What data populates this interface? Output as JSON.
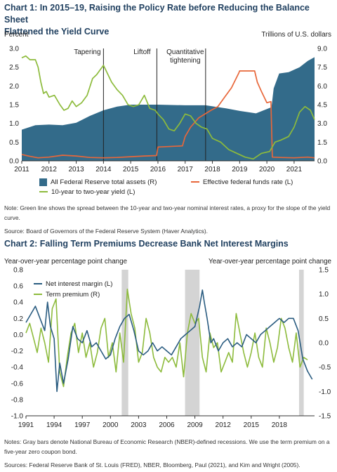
{
  "chart1": {
    "title_line1": "Chart 1: In 2015–19, Raising the Policy Rate before Reducing the Balance Sheet",
    "title_line2": "Flattened the Yield Curve",
    "left_axis_title": "Percent",
    "right_axis_title": "Trillions of U.S. dollars",
    "annotations": [
      "Tapering",
      "Liftoff",
      "Quantitative",
      "tightening"
    ],
    "note": "Note: Green line shows the spread between the 10-year and two-year nominal interest rates, a proxy for the slope of the yield curve.",
    "source": "Source: Board of Governors of the Federal Reserve System (Haver Analytics).",
    "colors": {
      "assets": "#336b8a",
      "ffr": "#e8673a",
      "spread": "#8dbb3c"
    }
  },
  "chart2": {
    "title": "Chart 2: Falling Term Premiums Decrease Bank Net Interest Margins",
    "left_axis_title": "Year-over-year percentage point change",
    "right_axis_title": "Year-over-year percentage point change",
    "note": "Notes: Gray bars denote National Bureau of Economic Research (NBER)-defined recessions. We use the term premium on a five-year zero coupon bond.",
    "source": "Sources: Federal Reserve Bank of St. Louis (FRED), NBER, Bloomberg, Paul (2021), and Kim and Wright (2005).",
    "colors": {
      "nim": "#2a5c80",
      "tp": "#8dbb3c",
      "recession": "#d4d4d4"
    }
  },
  "chart_data": [
    {
      "type": "line",
      "title": "Chart 1: In 2015–19, Raising the Policy Rate before Reducing the Balance Sheet Flattened the Yield Curve",
      "x_ticks": [
        "2011",
        "2012",
        "2013",
        "2014",
        "2015",
        "2016",
        "2017",
        "2018",
        "2019",
        "2020",
        "2021"
      ],
      "xlim": [
        2011,
        2021.75
      ],
      "ylim_left": [
        0,
        3.0
      ],
      "yticks_left": [
        "0.0",
        "0.5",
        "1.0",
        "1.5",
        "2.0",
        "2.5",
        "3.0"
      ],
      "ylim_right": [
        0,
        9.0
      ],
      "yticks_right": [
        "0.0",
        "1.5",
        "3.0",
        "4.5",
        "6.0",
        "7.5",
        "9.0"
      ],
      "event_lines": [
        {
          "label": "Tapering",
          "x": 2014.0
        },
        {
          "label": "Liftoff",
          "x": 2015.96
        },
        {
          "label": "Quantitative tightening",
          "x": 2017.75
        }
      ],
      "series": [
        {
          "name": "All Federal Reserve total assets (R)",
          "axis": "right",
          "kind": "area",
          "x": [
            2011.0,
            2011.5,
            2012.0,
            2012.5,
            2013.0,
            2013.5,
            2014.0,
            2014.5,
            2015.0,
            2016.0,
            2017.0,
            2017.75,
            2018.5,
            2019.0,
            2019.6,
            2020.0,
            2020.17,
            2020.25,
            2020.45,
            2020.8,
            2021.2,
            2021.5,
            2021.75
          ],
          "y": [
            2.5,
            2.85,
            2.9,
            2.85,
            3.05,
            3.6,
            4.05,
            4.35,
            4.5,
            4.5,
            4.45,
            4.45,
            4.2,
            4.0,
            3.8,
            4.15,
            4.3,
            5.8,
            7.0,
            7.1,
            7.5,
            8.0,
            8.3
          ]
        },
        {
          "name": "Effective federal funds rate (L)",
          "axis": "left",
          "kind": "line",
          "x": [
            2011.0,
            2011.3,
            2011.6,
            2012.0,
            2012.5,
            2013.0,
            2013.5,
            2014.0,
            2014.5,
            2015.0,
            2015.5,
            2015.95,
            2016.0,
            2016.9,
            2017.0,
            2017.2,
            2017.5,
            2017.95,
            2018.2,
            2018.45,
            2018.7,
            2018.97,
            2019.0,
            2019.55,
            2019.65,
            2019.8,
            2020.0,
            2020.15,
            2020.2,
            2020.5,
            2021.0,
            2021.5,
            2021.75
          ],
          "y": [
            0.17,
            0.12,
            0.08,
            0.1,
            0.15,
            0.13,
            0.09,
            0.08,
            0.09,
            0.11,
            0.13,
            0.14,
            0.37,
            0.4,
            0.65,
            0.9,
            1.15,
            1.35,
            1.45,
            1.7,
            1.95,
            2.35,
            2.4,
            2.4,
            2.1,
            1.85,
            1.55,
            1.58,
            0.1,
            0.09,
            0.08,
            0.1,
            0.08
          ]
        },
        {
          "name": "10-year to two-year yield (L)",
          "axis": "left",
          "kind": "line",
          "x": [
            2011.0,
            2011.15,
            2011.3,
            2011.5,
            2011.6,
            2011.7,
            2011.8,
            2011.9,
            2012.0,
            2012.2,
            2012.4,
            2012.55,
            2012.7,
            2012.85,
            2013.0,
            2013.2,
            2013.4,
            2013.6,
            2013.75,
            2013.9,
            2014.0,
            2014.1,
            2014.3,
            2014.5,
            2014.7,
            2014.9,
            2015.1,
            2015.3,
            2015.5,
            2015.7,
            2015.9,
            2016.0,
            2016.2,
            2016.4,
            2016.6,
            2016.8,
            2017.0,
            2017.2,
            2017.4,
            2017.6,
            2017.8,
            2018.0,
            2018.3,
            2018.6,
            2018.9,
            2019.2,
            2019.5,
            2019.8,
            2020.1,
            2020.3,
            2020.5,
            2020.8,
            2021.0,
            2021.2,
            2021.4,
            2021.6,
            2021.75
          ],
          "y": [
            2.75,
            2.8,
            2.7,
            2.7,
            2.5,
            2.1,
            1.8,
            1.85,
            1.7,
            1.75,
            1.5,
            1.35,
            1.4,
            1.6,
            1.45,
            1.55,
            1.75,
            2.2,
            2.3,
            2.45,
            2.55,
            2.4,
            2.1,
            1.9,
            1.75,
            1.5,
            1.45,
            1.5,
            1.75,
            1.4,
            1.35,
            1.25,
            1.1,
            0.85,
            0.8,
            1.0,
            1.25,
            1.2,
            1.0,
            0.9,
            0.85,
            0.6,
            0.5,
            0.3,
            0.2,
            0.1,
            0.05,
            0.2,
            0.25,
            0.5,
            0.55,
            0.65,
            0.9,
            1.3,
            1.45,
            1.35,
            1.1
          ]
        }
      ]
    },
    {
      "type": "line",
      "title": "Chart 2: Falling Term Premiums Decrease Bank Net Interest Margins",
      "x_ticks": [
        "1991",
        "1994",
        "1997",
        "2000",
        "2003",
        "2006",
        "2009",
        "2012",
        "2015",
        "2018"
      ],
      "xlim": [
        1991,
        2021.75
      ],
      "ylim_left": [
        -1.0,
        0.8
      ],
      "yticks_left": [
        "-1.0",
        "-0.8",
        "-0.6",
        "-0.4",
        "-0.2",
        "0.0",
        "0.2",
        "0.4",
        "0.6",
        "0.8"
      ],
      "ylim_right": [
        -1.5,
        1.5
      ],
      "yticks_right": [
        "-1.5",
        "-1.0",
        "-0.5",
        "0.0",
        "0.5",
        "1.0",
        "1.5"
      ],
      "recessions": [
        [
          2001.2,
          2001.9
        ],
        [
          2007.95,
          2009.5
        ],
        [
          2020.1,
          2020.6
        ]
      ],
      "series": [
        {
          "name": "Net interest margin (L)",
          "axis": "left",
          "x": [
            1991.0,
            1991.5,
            1992.0,
            1992.5,
            1993.0,
            1993.3,
            1993.6,
            1994.0,
            1994.3,
            1994.6,
            1995.0,
            1995.5,
            1996.0,
            1996.5,
            1997.0,
            1997.5,
            1998.0,
            1998.5,
            1999.0,
            1999.5,
            2000.0,
            2000.5,
            2001.0,
            2001.5,
            2002.0,
            2002.5,
            2003.0,
            2003.5,
            2004.0,
            2004.5,
            2005.0,
            2005.5,
            2006.0,
            2006.5,
            2007.0,
            2007.5,
            2008.0,
            2008.5,
            2009.0,
            2009.5,
            2009.8,
            2010.0,
            2010.3,
            2010.7,
            2011.0,
            2011.5,
            2012.0,
            2012.5,
            2013.0,
            2013.5,
            2014.0,
            2014.5,
            2015.0,
            2015.5,
            2016.0,
            2016.5,
            2017.0,
            2017.5,
            2018.0,
            2018.5,
            2019.0,
            2019.5,
            2020.0,
            2020.5,
            2021.0,
            2021.5
          ],
          "y": [
            0.15,
            0.25,
            0.35,
            0.2,
            0.05,
            0.4,
            0.1,
            -0.05,
            -0.7,
            -0.35,
            -0.6,
            -0.3,
            0.1,
            -0.05,
            -0.1,
            0.05,
            -0.15,
            -0.1,
            -0.2,
            -0.3,
            -0.25,
            -0.05,
            0.1,
            0.2,
            0.25,
            0.05,
            -0.2,
            -0.25,
            -0.2,
            -0.1,
            -0.2,
            -0.15,
            -0.2,
            -0.25,
            -0.15,
            -0.05,
            0.0,
            0.05,
            0.1,
            0.35,
            0.55,
            0.4,
            0.2,
            -0.1,
            -0.05,
            -0.2,
            -0.1,
            -0.05,
            -0.15,
            -0.1,
            -0.15,
            0.0,
            -0.05,
            -0.1,
            0.0,
            0.05,
            0.1,
            0.15,
            0.2,
            0.15,
            0.2,
            0.2,
            0.05,
            -0.3,
            -0.45,
            -0.55
          ]
        },
        {
          "name": "Term premium (R)",
          "axis": "right",
          "x": [
            1991.0,
            1991.4,
            1991.8,
            1992.2,
            1992.6,
            1993.0,
            1993.4,
            1993.8,
            1994.2,
            1994.6,
            1995.0,
            1995.4,
            1995.8,
            1996.2,
            1996.6,
            1997.0,
            1997.4,
            1997.8,
            1998.2,
            1998.6,
            1999.0,
            1999.4,
            1999.8,
            2000.2,
            2000.6,
            2001.0,
            2001.4,
            2001.8,
            2002.2,
            2002.6,
            2003.0,
            2003.4,
            2003.8,
            2004.2,
            2004.6,
            2005.0,
            2005.4,
            2005.8,
            2006.2,
            2006.6,
            2007.0,
            2007.4,
            2007.8,
            2008.2,
            2008.6,
            2009.0,
            2009.4,
            2009.8,
            2010.2,
            2010.6,
            2011.0,
            2011.4,
            2011.8,
            2012.2,
            2012.6,
            2013.0,
            2013.4,
            2013.8,
            2014.2,
            2014.6,
            2015.0,
            2015.4,
            2015.8,
            2016.2,
            2016.6,
            2017.0,
            2017.4,
            2017.8,
            2018.2,
            2018.6,
            2019.0,
            2019.4,
            2019.8,
            2020.2,
            2020.6,
            2021.0
          ],
          "y": [
            0.2,
            0.4,
            0.1,
            -0.2,
            0.3,
            0.0,
            -0.4,
            0.7,
            0.9,
            -0.6,
            -0.9,
            -0.3,
            0.2,
            0.4,
            -0.2,
            0.2,
            -0.3,
            0.0,
            -0.5,
            -0.2,
            0.3,
            0.5,
            -0.3,
            0.0,
            -0.6,
            0.2,
            -0.4,
            1.1,
            0.6,
            0.3,
            -0.4,
            -0.2,
            0.5,
            0.2,
            -0.3,
            -0.5,
            -0.6,
            -0.3,
            -0.4,
            -0.3,
            -0.5,
            0.0,
            -0.7,
            0.2,
            0.6,
            0.4,
            0.5,
            -0.3,
            -0.6,
            0.2,
            -0.1,
            0.0,
            -0.6,
            -0.4,
            -0.2,
            -0.4,
            0.6,
            0.2,
            -0.2,
            -0.5,
            -0.2,
            0.2,
            -0.3,
            -0.5,
            0.3,
            0.0,
            -0.4,
            -0.1,
            0.5,
            0.3,
            -0.1,
            -0.4,
            0.2,
            -0.5,
            -0.3,
            -0.35
          ]
        }
      ]
    }
  ]
}
